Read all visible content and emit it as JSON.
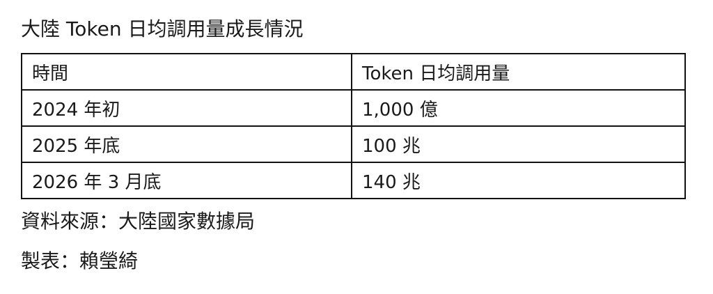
{
  "title": "大陸 Token 日均調用量成長情況",
  "table": {
    "headers": [
      "時間",
      "Token 日均調用量"
    ],
    "rows": [
      [
        "2024 年初",
        "1,000 億"
      ],
      [
        "2025 年底",
        "100 兆"
      ],
      [
        "2026 年 3 月底",
        "140 兆"
      ]
    ]
  },
  "source": "資料來源：大陸國家數據局",
  "author": "製表：賴瑩綺"
}
